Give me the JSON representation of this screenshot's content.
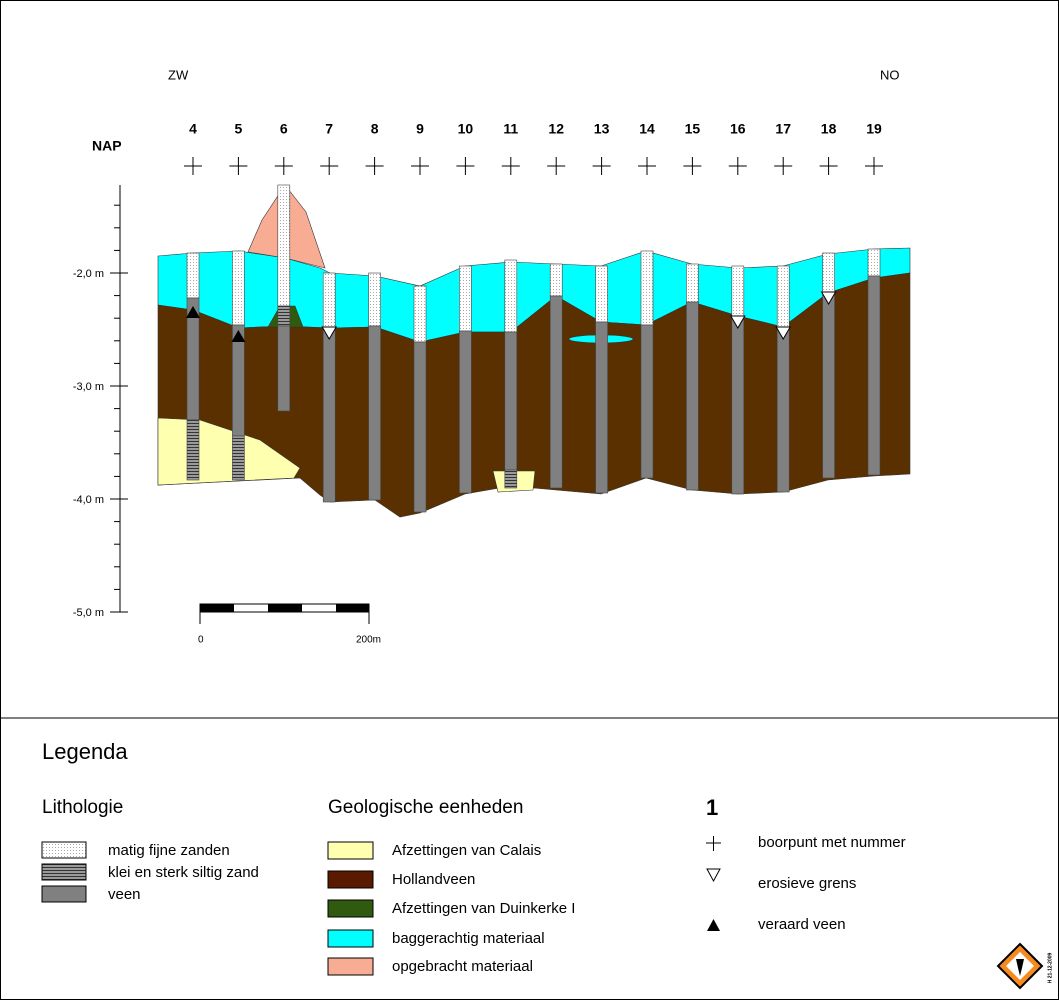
{
  "header": {
    "left": "ZW",
    "right": "NO",
    "datum": "NAP"
  },
  "boreholes": [
    "4",
    "5",
    "6",
    "7",
    "8",
    "9",
    "10",
    "11",
    "12",
    "13",
    "14",
    "15",
    "16",
    "17",
    "18",
    "19"
  ],
  "depth_labels": [
    "-2,0 m",
    "-3,0 m",
    "-4,0 m",
    "-5,0 m"
  ],
  "scale_bar": {
    "start": "0",
    "end": "200m"
  },
  "legend": {
    "title": "Legenda",
    "lithology": {
      "title": "Lithologie",
      "items": [
        "matig fijne zanden",
        "klei en sterk siltig zand",
        "veen"
      ]
    },
    "units": {
      "title": "Geologische eenheden",
      "items": [
        "Afzettingen van Calais",
        "Hollandveen",
        "Afzettingen van Duinkerke I",
        "baggerachtig materiaal",
        "opgebracht materiaal"
      ]
    },
    "symbols": {
      "example": "1",
      "items": [
        "boorpunt met nummer",
        "erosieve grens",
        "veraard veen"
      ]
    }
  },
  "stamp": "H 21-12-2009"
}
